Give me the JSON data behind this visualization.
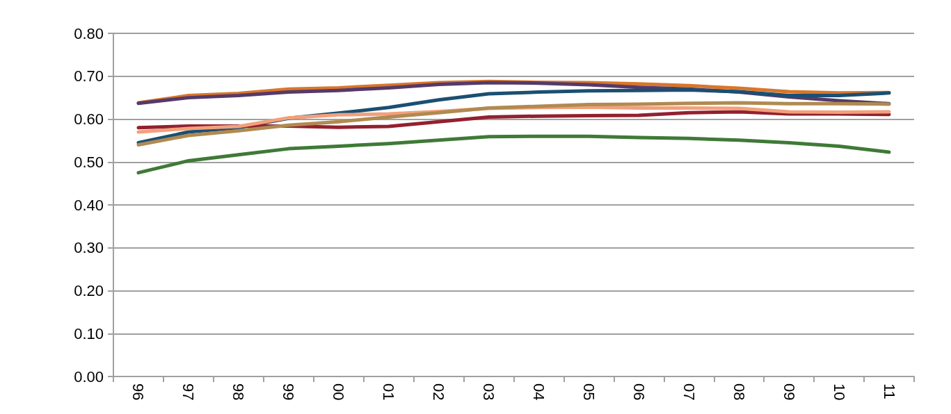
{
  "chart_data": {
    "type": "line",
    "categories": [
      "96",
      "97",
      "98",
      "99",
      "00",
      "01",
      "02",
      "03",
      "04",
      "05",
      "06",
      "07",
      "08",
      "09",
      "10",
      "11"
    ],
    "series": [
      {
        "color": "#d9762b",
        "values": [
          0.638,
          0.655,
          0.66,
          0.67,
          0.673,
          0.679,
          0.685,
          0.688,
          0.686,
          0.685,
          0.682,
          0.678,
          0.672,
          0.664,
          0.661,
          0.662
        ]
      },
      {
        "color": "#553a6a",
        "values": [
          0.637,
          0.65,
          0.655,
          0.663,
          0.667,
          0.673,
          0.681,
          0.685,
          0.684,
          0.68,
          0.674,
          0.67,
          0.663,
          0.652,
          0.643,
          0.636
        ]
      },
      {
        "color": "#1b4f72",
        "values": [
          0.545,
          0.57,
          0.58,
          0.602,
          0.614,
          0.627,
          0.645,
          0.659,
          0.663,
          0.666,
          0.667,
          0.668,
          0.664,
          0.655,
          0.655,
          0.661
        ]
      },
      {
        "color": "#93202f",
        "values": [
          0.58,
          0.584,
          0.584,
          0.584,
          0.581,
          0.583,
          0.594,
          0.605,
          0.607,
          0.608,
          0.609,
          0.615,
          0.617,
          0.612,
          0.612,
          0.611
        ]
      },
      {
        "color": "#f2a07b",
        "values": [
          0.57,
          0.578,
          0.583,
          0.603,
          0.61,
          0.612,
          0.618,
          0.625,
          0.627,
          0.628,
          0.626,
          0.626,
          0.625,
          0.617,
          0.616,
          0.617
        ]
      },
      {
        "color": "#b08a50",
        "values": [
          0.54,
          0.562,
          0.573,
          0.586,
          0.594,
          0.605,
          0.615,
          0.626,
          0.63,
          0.634,
          0.635,
          0.637,
          0.638,
          0.636,
          0.636,
          0.635
        ]
      },
      {
        "color": "#3f7a37",
        "values": [
          0.475,
          0.503,
          0.517,
          0.531,
          0.537,
          0.543,
          0.551,
          0.559,
          0.56,
          0.56,
          0.557,
          0.555,
          0.551,
          0.545,
          0.537,
          0.523
        ]
      }
    ],
    "ylim": [
      0,
      0.8
    ],
    "yticks": [
      {
        "value": 0,
        "label": "0.00"
      },
      {
        "value": 0.1,
        "label": "0.10"
      },
      {
        "value": 0.2,
        "label": "0.20"
      },
      {
        "value": 0.3,
        "label": "0.30"
      },
      {
        "value": 0.4,
        "label": "0.40"
      },
      {
        "value": 0.5,
        "label": "0.50"
      },
      {
        "value": 0.6,
        "label": "0.60"
      },
      {
        "value": 0.7,
        "label": "0.70"
      },
      {
        "value": 0.8,
        "label": "0.80"
      }
    ],
    "grid": "y",
    "marker": "none",
    "line_style": "solid"
  }
}
